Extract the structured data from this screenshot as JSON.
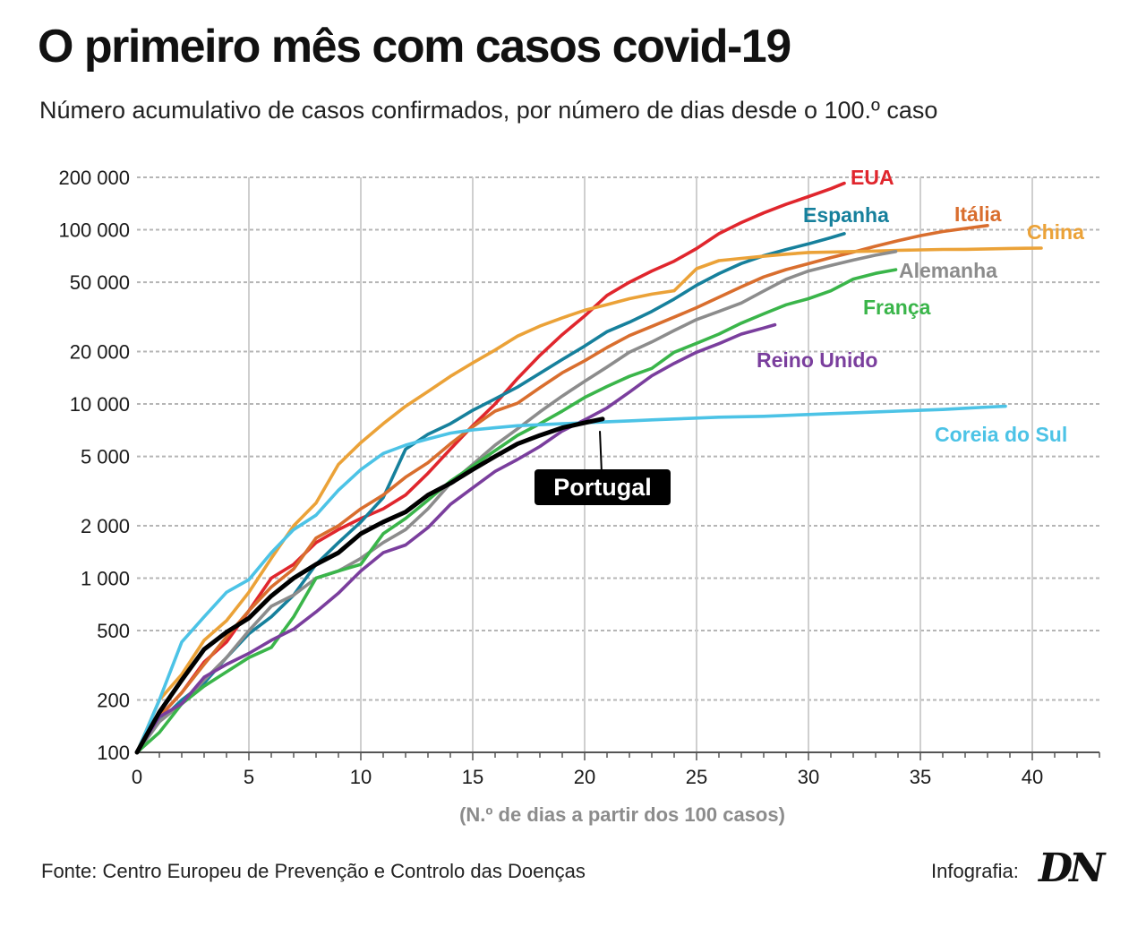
{
  "title": "O primeiro mês com casos covid-19",
  "subtitle": "Número acumulativo de casos confirmados, por número de dias desde o 100.º caso",
  "source": "Fonte: Centro Europeu de Prevenção e Controlo das Doenças",
  "credit": "Infografia:",
  "logo_text": "DN",
  "chart_data": {
    "type": "line",
    "title": "O primeiro mês com casos covid-19",
    "subtitle": "Número acumulativo de casos confirmados, por número de dias desde o 100.º caso",
    "xlabel": "(N.º de dias a partir dos 100 casos)",
    "ylabel": "",
    "y_scale": "log",
    "xlim": [
      0,
      43
    ],
    "ylim": [
      100,
      200000
    ],
    "x_ticks": [
      0,
      5,
      10,
      15,
      20,
      25,
      30,
      35,
      40
    ],
    "x_tick_labels": [
      "0",
      "5",
      "10",
      "15",
      "20",
      "25",
      "30",
      "35",
      "40"
    ],
    "y_ticks": [
      100,
      200,
      500,
      1000,
      2000,
      5000,
      10000,
      20000,
      50000,
      100000,
      200000
    ],
    "y_tick_labels": [
      "100",
      "200",
      "500",
      "1 000",
      "2 000",
      "5 000",
      "10 000",
      "20 000",
      "50 000",
      "100 000",
      "200 000"
    ],
    "grid": true,
    "legend": "direct labels at line ends",
    "series": [
      {
        "name": "EUA",
        "color": "#e0262d",
        "x": [
          0,
          1,
          2,
          3,
          4,
          5,
          6,
          7,
          8,
          9,
          10,
          11,
          12,
          13,
          14,
          15,
          16,
          17,
          18,
          19,
          20,
          21,
          22,
          23,
          24,
          25,
          26,
          27,
          28,
          29,
          30,
          31,
          31.6
        ],
        "y": [
          100,
          160,
          220,
          330,
          430,
          650,
          1000,
          1200,
          1600,
          1900,
          2200,
          2500,
          3000,
          4000,
          5500,
          7500,
          10000,
          14000,
          19000,
          25000,
          32000,
          42000,
          50000,
          58000,
          66000,
          78000,
          95000,
          110000,
          125000,
          140000,
          155000,
          172000,
          185000
        ]
      },
      {
        "name": "Espanha",
        "color": "#16809c",
        "x": [
          0,
          1,
          2,
          3,
          4,
          5,
          6,
          7,
          8,
          9,
          10,
          11,
          12,
          13,
          14,
          15,
          16,
          17,
          18,
          19,
          20,
          21,
          22,
          23,
          24,
          25,
          26,
          27,
          28,
          29,
          30,
          31,
          31.6
        ],
        "y": [
          100,
          150,
          200,
          250,
          350,
          480,
          600,
          800,
          1200,
          1600,
          2100,
          2900,
          5500,
          6700,
          7700,
          9200,
          10700,
          12500,
          15000,
          18000,
          21500,
          26000,
          29500,
          34000,
          40000,
          48000,
          56000,
          64000,
          71000,
          77000,
          83000,
          90000,
          95000
        ]
      },
      {
        "name": "Itália",
        "color": "#d96e2e",
        "x": [
          0,
          1,
          2,
          3,
          4,
          5,
          6,
          7,
          8,
          9,
          10,
          11,
          12,
          13,
          14,
          15,
          16,
          17,
          18,
          19,
          20,
          21,
          22,
          23,
          24,
          25,
          26,
          27,
          28,
          29,
          30,
          31,
          32,
          33,
          34,
          35,
          36,
          37,
          38
        ],
        "y": [
          100,
          160,
          220,
          320,
          460,
          650,
          890,
          1130,
          1700,
          2000,
          2500,
          3000,
          3800,
          4600,
          5900,
          7400,
          9100,
          10100,
          12400,
          15100,
          17700,
          21100,
          24700,
          27900,
          31500,
          35700,
          41000,
          47000,
          53600,
          59100,
          63900,
          69200,
          74400,
          80500,
          86500,
          92500,
          97700,
          101700,
          105800
        ]
      },
      {
        "name": "China",
        "color": "#eba238",
        "x": [
          0,
          1,
          2,
          3,
          4,
          5,
          6,
          7,
          8,
          9,
          10,
          11,
          12,
          13,
          14,
          15,
          16,
          17,
          18,
          19,
          20,
          21,
          22,
          23,
          24,
          25,
          26,
          27,
          28,
          29,
          30,
          31,
          32,
          33,
          34,
          35,
          36,
          37,
          38,
          39,
          40.4
        ],
        "y": [
          100,
          200,
          280,
          440,
          570,
          830,
          1300,
          2000,
          2700,
          4500,
          6000,
          7700,
          9700,
          11800,
          14400,
          17200,
          20400,
          24500,
          28000,
          31200,
          34500,
          37200,
          40200,
          42700,
          44700,
          59800,
          66500,
          68500,
          70500,
          72400,
          74100,
          74500,
          75000,
          75500,
          76200,
          76700,
          77100,
          77200,
          77700,
          78100,
          78500
        ]
      },
      {
        "name": "Alemanha",
        "color": "#8c8c8c",
        "x": [
          0,
          1,
          2,
          3,
          4,
          5,
          6,
          7,
          8,
          9,
          10,
          11,
          12,
          13,
          14,
          15,
          16,
          17,
          18,
          19,
          20,
          21,
          22,
          23,
          24,
          25,
          26,
          27,
          28,
          29,
          30,
          31,
          32,
          33,
          33.9
        ],
        "y": [
          100,
          150,
          190,
          260,
          350,
          500,
          690,
          800,
          1000,
          1100,
          1300,
          1600,
          1900,
          2500,
          3500,
          4500,
          5800,
          7200,
          9000,
          11100,
          13500,
          16300,
          19800,
          22700,
          26400,
          30500,
          34000,
          38000,
          44500,
          52000,
          58000,
          62400,
          67000,
          71500,
          75000
        ]
      },
      {
        "name": "França",
        "color": "#3ab54a",
        "x": [
          0,
          1,
          2,
          3,
          4,
          5,
          6,
          7,
          8,
          9,
          10,
          11,
          12,
          13,
          14,
          15,
          16,
          17,
          18,
          19,
          20,
          21,
          22,
          23,
          24,
          25,
          26,
          27,
          28,
          29,
          30,
          31,
          32,
          33,
          33.9
        ],
        "y": [
          100,
          130,
          190,
          240,
          290,
          350,
          400,
          600,
          1000,
          1100,
          1200,
          1800,
          2200,
          2800,
          3600,
          4400,
          5400,
          6600,
          7700,
          9100,
          10900,
          12600,
          14400,
          16000,
          19800,
          22300,
          25200,
          29100,
          32900,
          37100,
          40200,
          44600,
          52100,
          56200,
          59000
        ]
      },
      {
        "name": "Reino Unido",
        "color": "#7a3e9d",
        "x": [
          0,
          1,
          2,
          3,
          4,
          5,
          6,
          7,
          8,
          9,
          10,
          11,
          12,
          13,
          14,
          15,
          16,
          17,
          18,
          19,
          20,
          21,
          22,
          23,
          24,
          25,
          26,
          27,
          28,
          28.5
        ],
        "y": [
          100,
          160,
          190,
          270,
          320,
          370,
          440,
          510,
          640,
          820,
          1100,
          1400,
          1550,
          1950,
          2650,
          3300,
          4100,
          4800,
          5700,
          7000,
          8100,
          9500,
          11700,
          14500,
          17100,
          19800,
          22200,
          25200,
          27300,
          28500
        ]
      },
      {
        "name": "Coreia do Sul",
        "color": "#4cc3e6",
        "x": [
          0,
          1,
          2,
          3,
          4,
          5,
          6,
          7,
          8,
          9,
          10,
          11,
          12,
          13,
          14,
          15,
          16,
          17,
          18,
          19,
          20,
          21,
          22,
          23,
          24,
          25,
          26,
          27,
          28,
          29,
          30,
          31,
          32,
          33,
          34,
          35,
          36,
          37,
          38,
          38.8
        ],
        "y": [
          100,
          200,
          430,
          600,
          830,
          980,
          1400,
          1900,
          2300,
          3200,
          4200,
          5200,
          5800,
          6300,
          6800,
          7100,
          7300,
          7500,
          7600,
          7700,
          7800,
          7900,
          8000,
          8100,
          8200,
          8300,
          8400,
          8450,
          8500,
          8600,
          8700,
          8800,
          8900,
          9000,
          9100,
          9200,
          9300,
          9450,
          9600,
          9700
        ]
      },
      {
        "name": "Portugal",
        "color": "#000000",
        "x": [
          0,
          1,
          2,
          3,
          4,
          5,
          6,
          7,
          8,
          9,
          10,
          11,
          12,
          13,
          14,
          15,
          16,
          17,
          18,
          19,
          20,
          20.8
        ],
        "y": [
          100,
          170,
          260,
          390,
          490,
          590,
          790,
          1000,
          1200,
          1400,
          1800,
          2100,
          2400,
          3000,
          3500,
          4200,
          5000,
          5900,
          6600,
          7300,
          7800,
          8200
        ]
      }
    ]
  }
}
